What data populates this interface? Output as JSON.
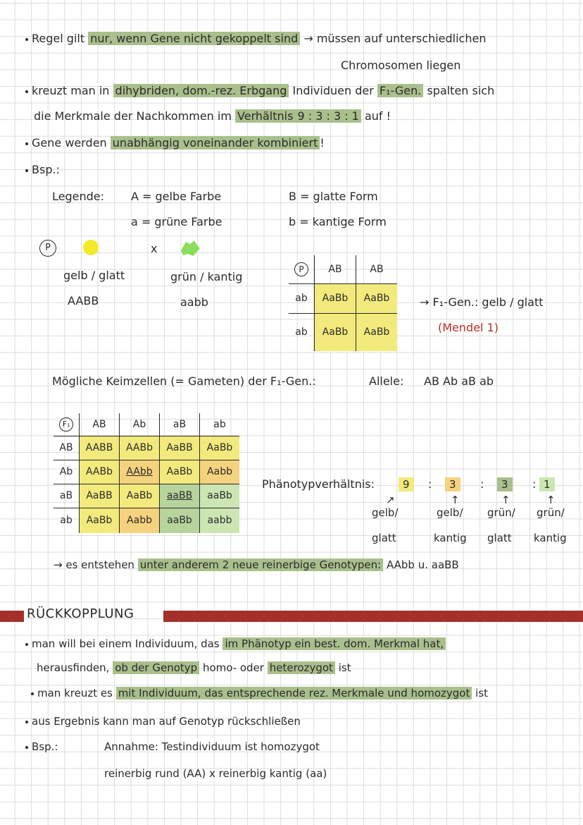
{
  "lines": {
    "l1a": "Regel gilt",
    "l1b": "nur, wenn Gene nicht gekoppelt sind",
    "l1c": "→ müssen auf unterschiedlichen",
    "l2": "Chromosomen liegen",
    "l3a": "kreuzt man in",
    "l3b": "dihybriden, dom.-rez. Erbgang",
    "l3c": "Individuen der",
    "l3d": "F₁-Gen.",
    "l3e": "spalten sich",
    "l4a": "die Merkmale der Nachkommen im",
    "l4b": "Verhältnis",
    "l4c": "9 : 3 : 3 : 1",
    "l4d": "auf !",
    "l5a": "Gene werden",
    "l5b": "unabhängig voneinander kombiniert",
    "l5c": "!",
    "l6": "Bsp.:",
    "legende": "Legende:",
    "leg_A": "A = gelbe Farbe",
    "leg_a": "a = grüne Farbe",
    "leg_B": "B = glatte Form",
    "leg_b": "b = kantige Form",
    "p_label": "P",
    "cross_x": "x",
    "p1_pheno": "gelb / glatt",
    "p1_geno": "AABB",
    "p2_pheno": "grün / kantig",
    "p2_geno": "aabb",
    "f1_arrow": "→ F₁-Gen.: gelb / glatt",
    "mendel": "(Mendel 1)",
    "gameten": "Mögliche Keimzellen (= Gameten) der F₁-Gen.:",
    "allele_label": "Allele:",
    "allele_values": "AB   Ab   aB ab",
    "phaeno_label": "Phänotypverhältnis:",
    "r1": "9",
    "r2": "3",
    "r3": "3",
    "r4": "1",
    "colon": ":",
    "ph1a": "gelb/",
    "ph1b": "glatt",
    "ph2a": "gelb/",
    "ph2b": "kantig",
    "ph3a": "grün/",
    "ph3b": "glatt",
    "ph4a": "grün/",
    "ph4b": "kantig",
    "new_a": "→ es entstehen",
    "new_b": "unter anderem 2 neue reinerbige Genotypen:",
    "new_c": "AAbb u. aaBB",
    "heading": "RÜCKKOPPLUNG",
    "r_l1a": "man will bei einem Individuum, das",
    "r_l1b": "im Phänotyp ein best. dom. Merkmal hat,",
    "r_l2a": "herausfinden,",
    "r_l2b": "ob der Genotyp",
    "r_l2c": "homo- oder",
    "r_l2d": "heterozygot",
    "r_l2e": "ist",
    "r_l3a": "man kreuzt es",
    "r_l3b": "mit Individuum, das entsprechende rez. Merkmale und homozygot",
    "r_l3c": "ist",
    "r_l4": "aus Ergebnis kann man auf Genotyp rückschließen",
    "r_l5a": "Bsp.:",
    "r_l5b": "Annahme: Testindividuum ist homozygot",
    "r_l6": "reinerbig rund (AA)   x   reinerbig kantig (aa)"
  },
  "p_table": {
    "corner": "P",
    "cols": [
      "AB",
      "AB"
    ],
    "rows": [
      {
        "head": "ab",
        "cells": [
          "AaBb",
          "AaBb"
        ]
      },
      {
        "head": "ab",
        "cells": [
          "AaBb",
          "AaBb"
        ]
      }
    ]
  },
  "f1_table": {
    "corner": "F₁",
    "cols": [
      "AB",
      "Ab",
      "aB",
      "ab"
    ],
    "rows": [
      {
        "head": "AB",
        "cells": [
          "AABB",
          "AABb",
          "AaBB",
          "AaBb"
        ]
      },
      {
        "head": "Ab",
        "cells": [
          "AABb",
          "AAbb",
          "AaBb",
          "Aabb"
        ]
      },
      {
        "head": "aB",
        "cells": [
          "AaBB",
          "AaBb",
          "aaBB",
          "aaBb"
        ]
      },
      {
        "head": "ab",
        "cells": [
          "AaBb",
          "Aabb",
          "aaBb",
          "aabb"
        ]
      }
    ]
  },
  "colors": {
    "highlight": "#a9bf8c",
    "yellow": "#f2ea7c",
    "orange": "#f5d27e",
    "green": "#b7d49d",
    "heading_bar": "#a4302c",
    "mendel_red": "#b4302a"
  },
  "icons": {
    "yellow_dot": "yellow-pea-icon",
    "green_blob": "green-pea-icon"
  }
}
